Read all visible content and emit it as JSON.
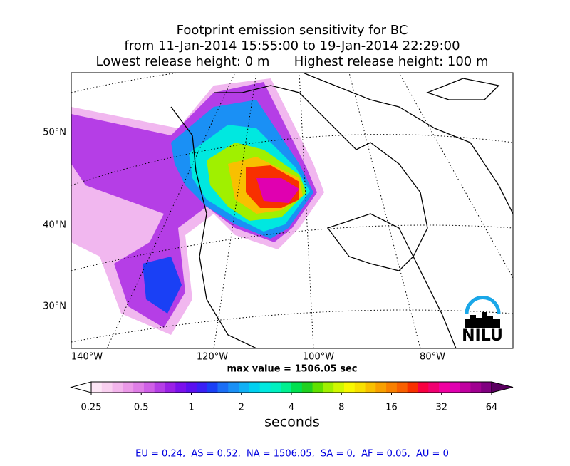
{
  "header": {
    "title_lines": [
      "Footprint emission sensitivity for BC",
      "from 11-Jan-2014 15:55:00 to 19-Jan-2014 22:29:00",
      "Lowest release height: 0 m      Highest release height: 100 m"
    ]
  },
  "map": {
    "lat_labels": [
      "50°N",
      "40°N",
      "30°N"
    ],
    "lon_labels": [
      "140°W",
      "120°W",
      "100°W",
      "80°W"
    ],
    "logo": "NILU",
    "max_note": "max value = 1506.05 sec"
  },
  "colorbar": {
    "lim": [
      0.25,
      64
    ],
    "ticks": [
      0.25,
      0.5,
      1,
      2,
      4,
      8,
      16,
      32,
      64
    ],
    "log": true,
    "label": "seconds",
    "extend_colors": [
      "#ffffff",
      "#5a0060"
    ],
    "colors": [
      "#fde6f6",
      "#f9d0f0",
      "#f3b5ec",
      "#eb99e8",
      "#df7ee6",
      "#cf60e6",
      "#b53ee6",
      "#9a20e6",
      "#7a10ec",
      "#5a10f0",
      "#3a20f5",
      "#1a40f5",
      "#1b6ef5",
      "#1a90f5",
      "#10b0f5",
      "#00d0f0",
      "#00e8e0",
      "#00f0c0",
      "#00f090",
      "#00e050",
      "#20d020",
      "#60e000",
      "#a0f000",
      "#d0f800",
      "#f8f800",
      "#f8e000",
      "#f8c000",
      "#f8a000",
      "#f88000",
      "#f86000",
      "#f83000",
      "#f80040",
      "#f00070",
      "#f000a0",
      "#e000b0",
      "#c000a0",
      "#a00090",
      "#800080"
    ]
  },
  "footer": {
    "text": "EU = 0.24,  AS = 0.52,  NA = 1506.05,  SA = 0,  AF = 0.05,  AU = 0"
  }
}
